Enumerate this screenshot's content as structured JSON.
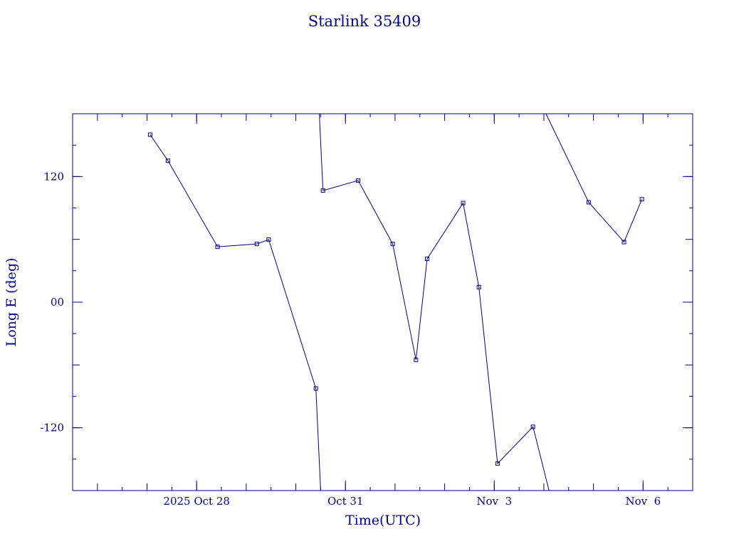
{
  "chart_data": {
    "type": "line",
    "title": "Starlink 35409",
    "xlabel": "Time(UTC)",
    "ylabel": "Long E (deg)",
    "xlim": [
      "2025-10-25 12:00",
      "2025-11-07 00:00"
    ],
    "ylim": [
      -180,
      180
    ],
    "x_tick_labels": [
      "2025 Oct 28",
      "Oct 31",
      "Nov  3",
      "Nov  6"
    ],
    "x_ticks": [
      "2025-10-28 00:00",
      "2025-10-31 00:00",
      "2025-11-03 00:00",
      "2025-11-06 00:00"
    ],
    "y_tick_labels": [
      "120",
      "00",
      "-120"
    ],
    "y_ticks": [
      120,
      0,
      -120
    ],
    "grid": false,
    "series": [
      {
        "segments": [
          [
            [
              "2025-10-27 01:31",
              160.0
            ],
            [
              "2025-10-27 10:07",
              135.1
            ],
            [
              "2025-10-28 10:07",
              52.9
            ],
            [
              "2025-10-29 05:07",
              55.6
            ],
            [
              "2025-10-29 10:52",
              59.8
            ],
            [
              "2025-10-30 09:42",
              -82.5
            ],
            [
              "2025-10-30 12:00",
              -180.0
            ]
          ],
          [
            [
              "2025-10-30 11:20",
              180.0
            ],
            [
              "2025-10-30 13:08",
              106.6
            ],
            [
              "2025-10-31 06:10",
              116.2
            ],
            [
              "2025-10-31 22:51",
              55.6
            ],
            [
              "2025-11-01 10:07",
              -55.2
            ],
            [
              "2025-11-01 15:31",
              41.4
            ],
            [
              "2025-11-02 08:55",
              94.7
            ],
            [
              "2025-11-02 16:34",
              14.4
            ],
            [
              "2025-11-03 01:35",
              -154.2
            ],
            [
              "2025-11-03 18:44",
              -119.1
            ],
            [
              "2025-11-04 02:30",
              -180.0
            ]
          ],
          [
            [
              "2025-11-04 01:00",
              180.0
            ],
            [
              "2025-11-04 21:40",
              95.4
            ],
            [
              "2025-11-05 14:47",
              57.4
            ],
            [
              "2025-11-05 23:25",
              98.3
            ]
          ]
        ]
      }
    ]
  }
}
